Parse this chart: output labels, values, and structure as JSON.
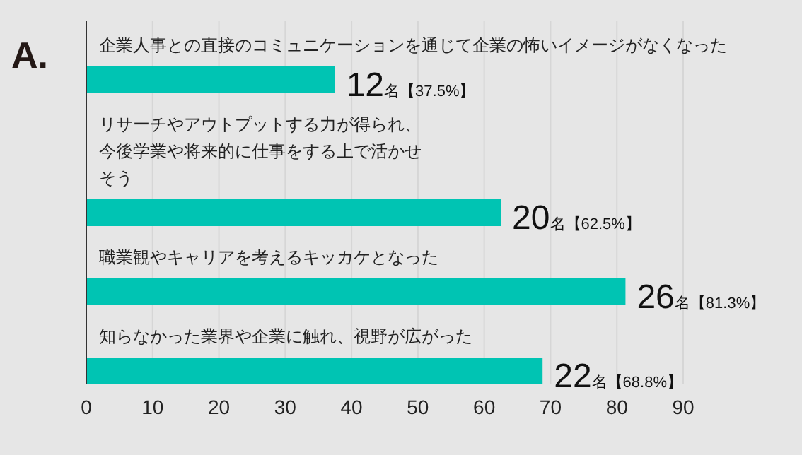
{
  "chart_data": {
    "type": "bar",
    "orientation": "horizontal",
    "title": "A.",
    "categories": [
      "企業人事との直接のコミュニケーションを通じて企業の怖いイメージがなくなった",
      "リサーチやアウトプットする力が得られ、今後学業や将来的に仕事をする上で活かせそう",
      "職業観やキャリアを考えるキッカケとなった",
      "知らなかった業界や企業に触れ、視野が広がった"
    ],
    "values": [
      37.5,
      62.5,
      81.3,
      68.8
    ],
    "value_labels": [
      "12名【37.5%】",
      "20名【62.5%】",
      "26名【81.3%】",
      "22名【68.8%】"
    ],
    "color": "#00c4b3",
    "xlim": [
      0,
      90
    ],
    "xticks": [
      0,
      10,
      20,
      30,
      40,
      50,
      60,
      70,
      80,
      90
    ],
    "grid": "x"
  }
}
